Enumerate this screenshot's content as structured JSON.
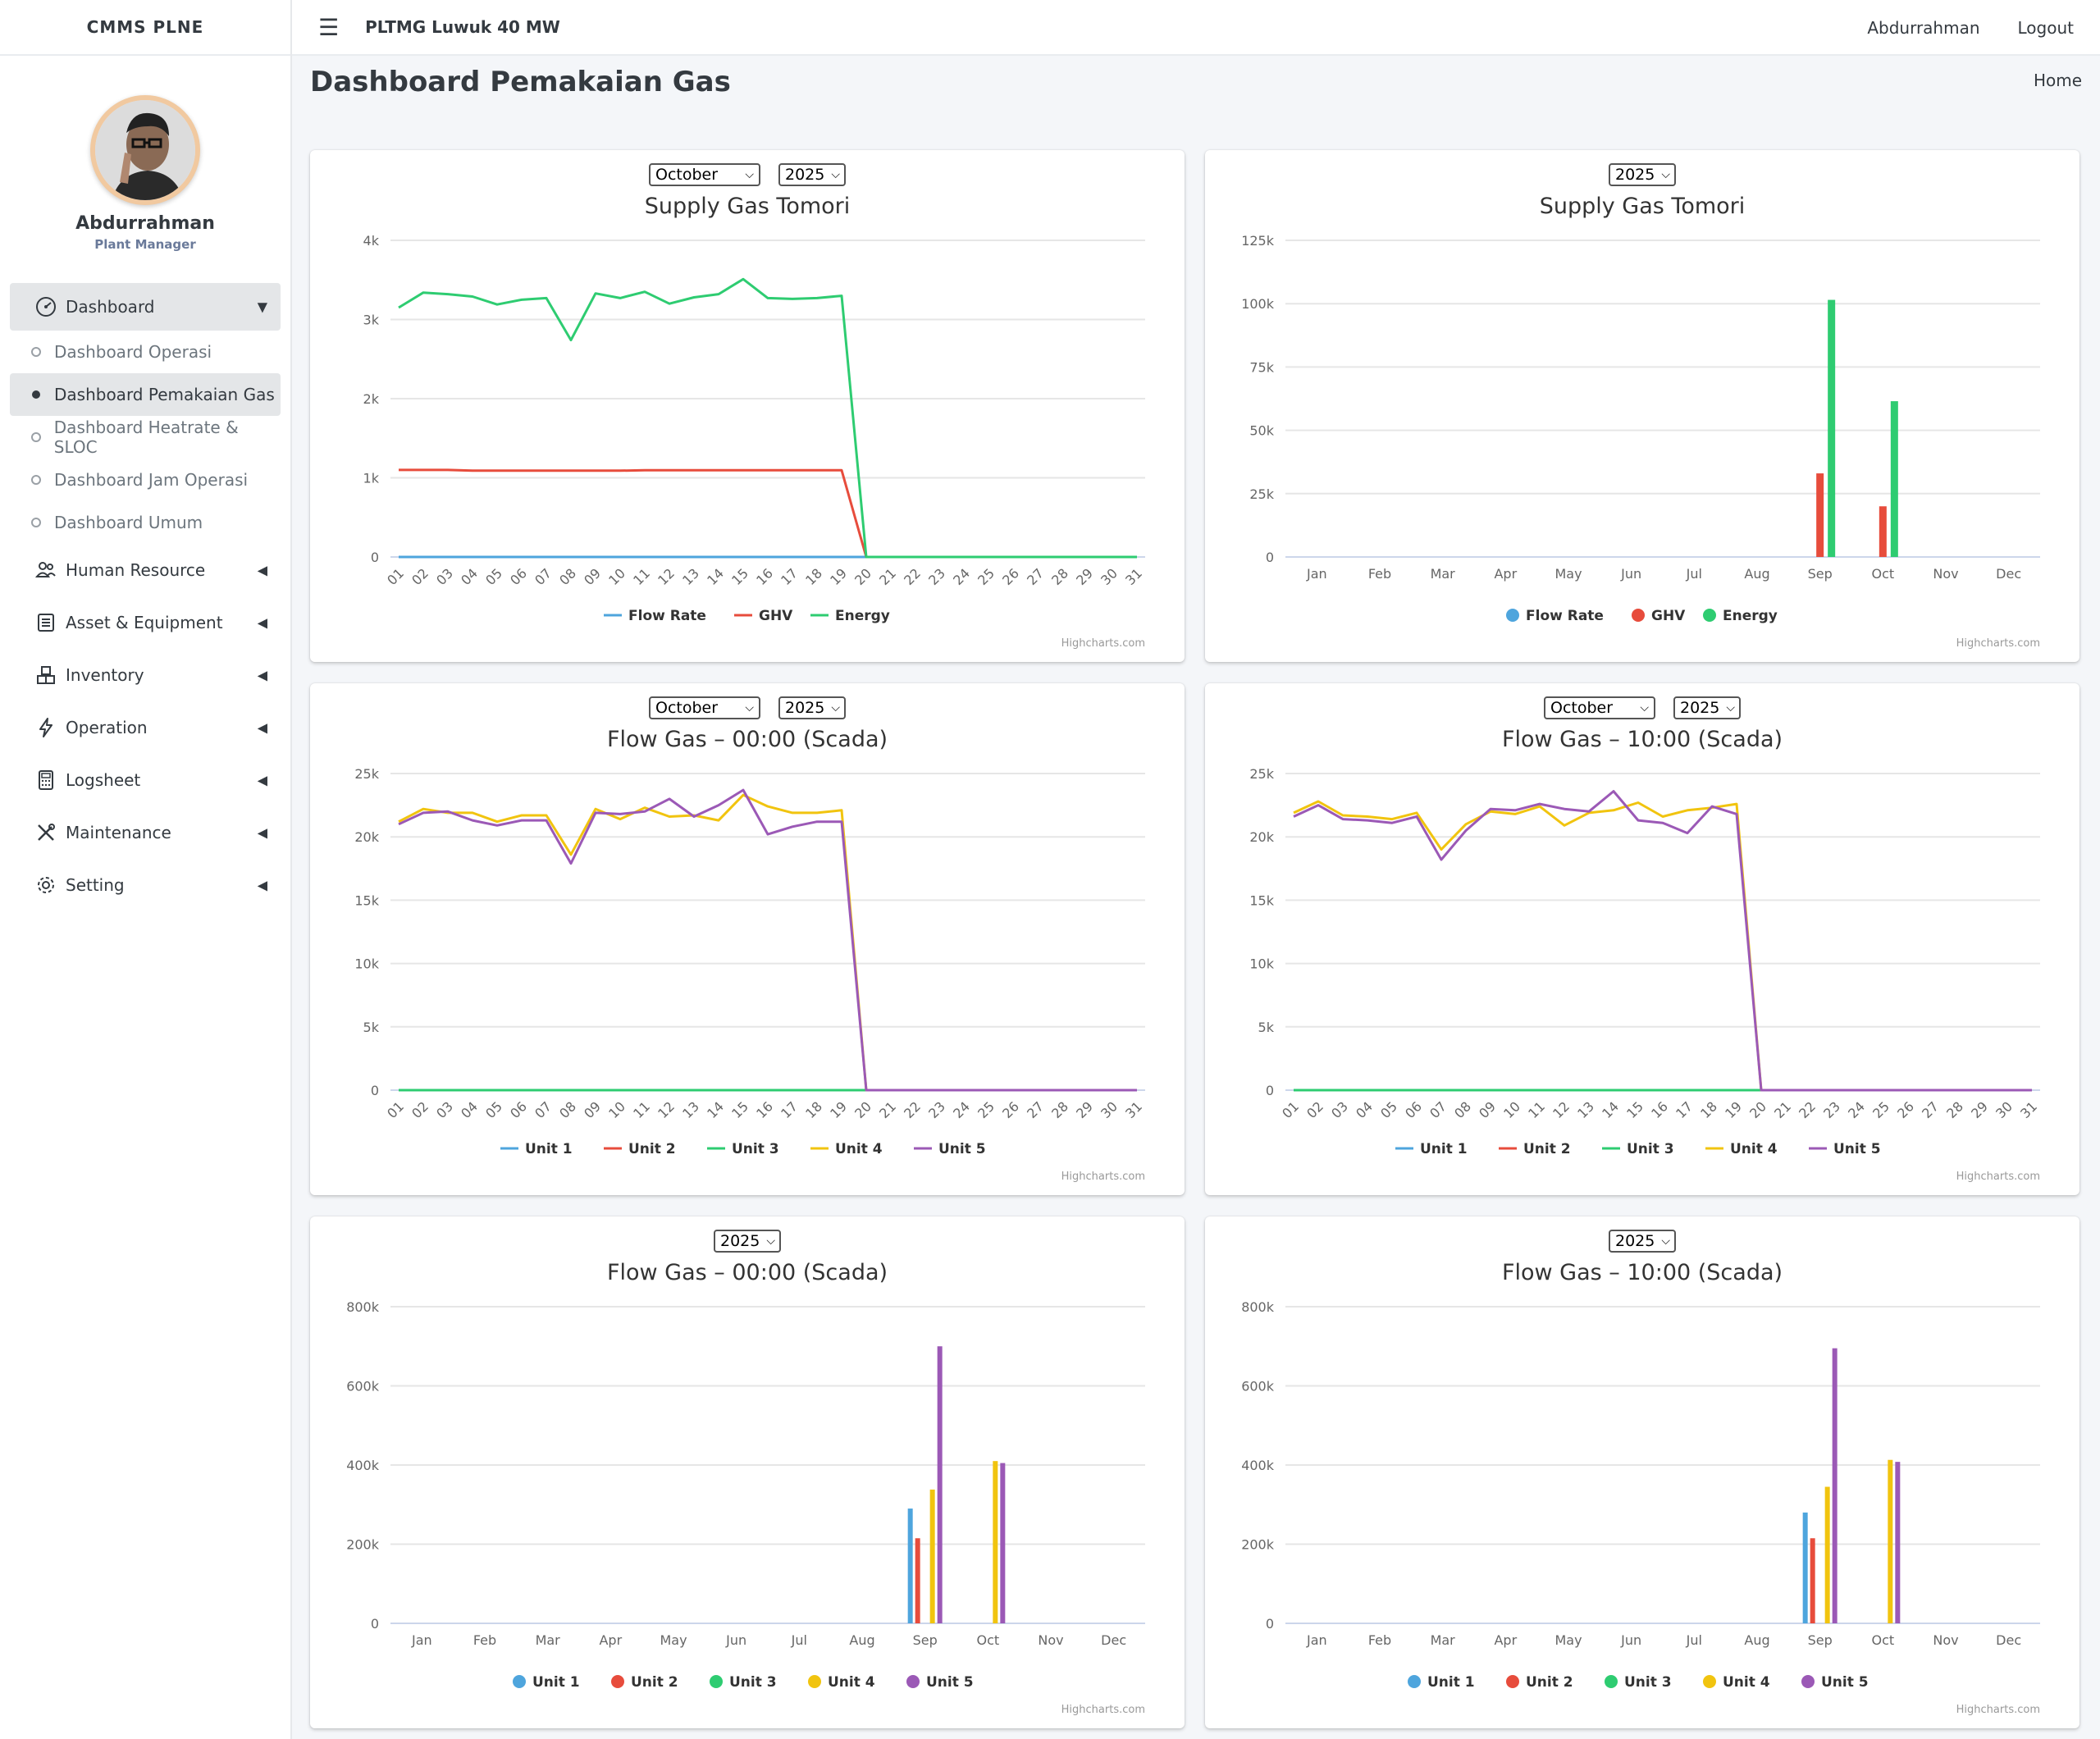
{
  "app": {
    "brand": "CMMS PLNE",
    "site_title": "PLTMG Luwuk 40 MW",
    "user_name": "Abdurrahman",
    "logout_label": "Logout"
  },
  "profile": {
    "name": "Abdurrahman",
    "role": "Plant Manager"
  },
  "sidebar": {
    "dashboard": {
      "label": "Dashboard",
      "icon": "gauge-icon"
    },
    "sub_items": [
      {
        "label": "Dashboard Operasi",
        "active": false
      },
      {
        "label": "Dashboard Pemakaian Gas",
        "active": true
      },
      {
        "label": "Dashboard Heatrate & SLOC",
        "active": false
      },
      {
        "label": "Dashboard Jam Operasi",
        "active": false
      },
      {
        "label": "Dashboard Umum",
        "active": false
      }
    ],
    "items": [
      {
        "label": "Human Resource",
        "icon": "users-icon"
      },
      {
        "label": "Asset & Equipment",
        "icon": "list-icon"
      },
      {
        "label": "Inventory",
        "icon": "boxes-icon"
      },
      {
        "label": "Operation",
        "icon": "bolt-icon"
      },
      {
        "label": "Logsheet",
        "icon": "calculator-icon"
      },
      {
        "label": "Maintenance",
        "icon": "tools-icon"
      },
      {
        "label": "Setting",
        "icon": "gear-icon"
      }
    ]
  },
  "page": {
    "title": "Dashboard Pemakaian Gas",
    "breadcrumb": "Home"
  },
  "credits": "Highcharts.com",
  "colors": {
    "blue": "#4ea5dd",
    "red": "#e74c3c",
    "green": "#2ecc71",
    "yellow": "#f1c40f",
    "purple": "#9b59b6"
  },
  "chart_data": [
    {
      "type": "line",
      "title": "Supply Gas Tomori",
      "selectors": {
        "month": "October",
        "year": "2025"
      },
      "categories": [
        "01",
        "02",
        "03",
        "04",
        "05",
        "06",
        "07",
        "08",
        "09",
        "10",
        "11",
        "12",
        "13",
        "14",
        "15",
        "16",
        "17",
        "18",
        "19",
        "20",
        "21",
        "22",
        "23",
        "24",
        "25",
        "26",
        "27",
        "28",
        "29",
        "30",
        "31"
      ],
      "ylim": [
        0,
        4000
      ],
      "yticks": [
        0,
        1000,
        2000,
        3000,
        4000
      ],
      "ytick_labels": [
        "0",
        "1k",
        "2k",
        "3k",
        "4k"
      ],
      "legend_marker": "line",
      "series": [
        {
          "name": "Flow Rate",
          "color": "#4ea5dd",
          "values": [
            0,
            0,
            0,
            0,
            0,
            0,
            0,
            0,
            0,
            0,
            0,
            0,
            0,
            0,
            0,
            0,
            0,
            0,
            0,
            0,
            0,
            0,
            0,
            0,
            0,
            0,
            0,
            0,
            0,
            0,
            0
          ]
        },
        {
          "name": "GHV",
          "color": "#e74c3c",
          "values": [
            1100,
            1100,
            1100,
            1090,
            1090,
            1090,
            1090,
            1090,
            1090,
            1090,
            1095,
            1095,
            1095,
            1095,
            1095,
            1095,
            1095,
            1095,
            1095,
            0,
            0,
            0,
            0,
            0,
            0,
            0,
            0,
            0,
            0,
            0,
            0
          ]
        },
        {
          "name": "Energy",
          "color": "#2ecc71",
          "values": [
            3150,
            3340,
            3320,
            3290,
            3190,
            3250,
            3270,
            2740,
            3330,
            3270,
            3350,
            3200,
            3280,
            3320,
            3510,
            3270,
            3260,
            3270,
            3300,
            0,
            0,
            0,
            0,
            0,
            0,
            0,
            0,
            0,
            0,
            0,
            0
          ]
        }
      ]
    },
    {
      "type": "bar",
      "title": "Supply Gas Tomori",
      "selectors": {
        "year": "2025"
      },
      "categories": [
        "Jan",
        "Feb",
        "Mar",
        "Apr",
        "May",
        "Jun",
        "Jul",
        "Aug",
        "Sep",
        "Oct",
        "Nov",
        "Dec"
      ],
      "ylim": [
        0,
        125000
      ],
      "yticks": [
        0,
        25000,
        50000,
        75000,
        100000,
        125000
      ],
      "ytick_labels": [
        "0",
        "25k",
        "50k",
        "75k",
        "100k",
        "125k"
      ],
      "legend_marker": "dot",
      "series": [
        {
          "name": "Flow Rate",
          "color": "#4ea5dd",
          "values": [
            0,
            0,
            0,
            0,
            0,
            0,
            0,
            0,
            0,
            0,
            0,
            0
          ]
        },
        {
          "name": "GHV",
          "color": "#e74c3c",
          "values": [
            0,
            0,
            0,
            0,
            0,
            0,
            0,
            0,
            33000,
            20000,
            0,
            0
          ]
        },
        {
          "name": "Energy",
          "color": "#2ecc71",
          "values": [
            0,
            0,
            0,
            0,
            0,
            0,
            0,
            0,
            101500,
            61500,
            0,
            0
          ]
        }
      ]
    },
    {
      "type": "line",
      "title": "Flow Gas – 00:00 (Scada)",
      "selectors": {
        "month": "October",
        "year": "2025"
      },
      "categories": [
        "01",
        "02",
        "03",
        "04",
        "05",
        "06",
        "07",
        "08",
        "09",
        "10",
        "11",
        "12",
        "13",
        "14",
        "15",
        "16",
        "17",
        "18",
        "19",
        "20",
        "21",
        "22",
        "23",
        "24",
        "25",
        "26",
        "27",
        "28",
        "29",
        "30",
        "31"
      ],
      "ylim": [
        0,
        25000
      ],
      "yticks": [
        0,
        5000,
        10000,
        15000,
        20000,
        25000
      ],
      "ytick_labels": [
        "0",
        "5k",
        "10k",
        "15k",
        "20k",
        "25k"
      ],
      "legend_marker": "line",
      "series": [
        {
          "name": "Unit 1",
          "color": "#4ea5dd",
          "values": [
            0,
            0,
            0,
            0,
            0,
            0,
            0,
            0,
            0,
            0,
            0,
            0,
            0,
            0,
            0,
            0,
            0,
            0,
            0,
            0,
            0,
            0,
            0,
            0,
            0,
            0,
            0,
            0,
            0,
            0,
            0
          ]
        },
        {
          "name": "Unit 2",
          "color": "#e74c3c",
          "values": [
            0,
            0,
            0,
            0,
            0,
            0,
            0,
            0,
            0,
            0,
            0,
            0,
            0,
            0,
            0,
            0,
            0,
            0,
            0,
            0,
            0,
            0,
            0,
            0,
            0,
            0,
            0,
            0,
            0,
            0,
            0
          ]
        },
        {
          "name": "Unit 3",
          "color": "#2ecc71",
          "values": [
            0,
            0,
            0,
            0,
            0,
            0,
            0,
            0,
            0,
            0,
            0,
            0,
            0,
            0,
            0,
            0,
            0,
            0,
            0,
            0,
            0,
            0,
            0,
            0,
            0,
            0,
            0,
            0,
            0,
            0,
            0
          ]
        },
        {
          "name": "Unit 4",
          "color": "#f1c40f",
          "values": [
            21200,
            22200,
            21900,
            21900,
            21200,
            21700,
            21700,
            18600,
            22200,
            21400,
            22300,
            21600,
            21700,
            21300,
            23300,
            22400,
            21900,
            21900,
            22100,
            0,
            0,
            0,
            0,
            0,
            0,
            0,
            0,
            0,
            0,
            0,
            0
          ]
        },
        {
          "name": "Unit 5",
          "color": "#9b59b6",
          "values": [
            21000,
            21900,
            22000,
            21300,
            20900,
            21300,
            21300,
            17900,
            21900,
            21800,
            22000,
            23000,
            21600,
            22500,
            23700,
            20200,
            20800,
            21200,
            21200,
            0,
            0,
            0,
            0,
            0,
            0,
            0,
            0,
            0,
            0,
            0,
            0
          ]
        }
      ]
    },
    {
      "type": "line",
      "title": "Flow Gas – 10:00 (Scada)",
      "selectors": {
        "month": "October",
        "year": "2025"
      },
      "categories": [
        "01",
        "02",
        "03",
        "04",
        "05",
        "06",
        "07",
        "08",
        "09",
        "10",
        "11",
        "12",
        "13",
        "14",
        "15",
        "16",
        "17",
        "18",
        "19",
        "20",
        "21",
        "22",
        "23",
        "24",
        "25",
        "26",
        "27",
        "28",
        "29",
        "30",
        "31"
      ],
      "ylim": [
        0,
        25000
      ],
      "yticks": [
        0,
        5000,
        10000,
        15000,
        20000,
        25000
      ],
      "ytick_labels": [
        "0",
        "5k",
        "10k",
        "15k",
        "20k",
        "25k"
      ],
      "legend_marker": "line",
      "series": [
        {
          "name": "Unit 1",
          "color": "#4ea5dd",
          "values": [
            0,
            0,
            0,
            0,
            0,
            0,
            0,
            0,
            0,
            0,
            0,
            0,
            0,
            0,
            0,
            0,
            0,
            0,
            0,
            0,
            0,
            0,
            0,
            0,
            0,
            0,
            0,
            0,
            0,
            0,
            0
          ]
        },
        {
          "name": "Unit 2",
          "color": "#e74c3c",
          "values": [
            0,
            0,
            0,
            0,
            0,
            0,
            0,
            0,
            0,
            0,
            0,
            0,
            0,
            0,
            0,
            0,
            0,
            0,
            0,
            0,
            0,
            0,
            0,
            0,
            0,
            0,
            0,
            0,
            0,
            0,
            0
          ]
        },
        {
          "name": "Unit 3",
          "color": "#2ecc71",
          "values": [
            0,
            0,
            0,
            0,
            0,
            0,
            0,
            0,
            0,
            0,
            0,
            0,
            0,
            0,
            0,
            0,
            0,
            0,
            0,
            0,
            0,
            0,
            0,
            0,
            0,
            0,
            0,
            0,
            0,
            0,
            0
          ]
        },
        {
          "name": "Unit 4",
          "color": "#f1c40f",
          "values": [
            21900,
            22800,
            21700,
            21600,
            21400,
            21900,
            19000,
            21000,
            22000,
            21800,
            22400,
            20900,
            21900,
            22100,
            22700,
            21600,
            22100,
            22300,
            22600,
            0,
            0,
            0,
            0,
            0,
            0,
            0,
            0,
            0,
            0,
            0,
            0
          ]
        },
        {
          "name": "Unit 5",
          "color": "#9b59b6",
          "values": [
            21600,
            22500,
            21400,
            21300,
            21100,
            21600,
            18200,
            20500,
            22200,
            22100,
            22600,
            22200,
            22000,
            23600,
            21300,
            21100,
            20300,
            22400,
            21800,
            0,
            0,
            0,
            0,
            0,
            0,
            0,
            0,
            0,
            0,
            0,
            0
          ]
        }
      ]
    },
    {
      "type": "bar",
      "title": "Flow Gas – 00:00 (Scada)",
      "selectors": {
        "year": "2025"
      },
      "categories": [
        "Jan",
        "Feb",
        "Mar",
        "Apr",
        "May",
        "Jun",
        "Jul",
        "Aug",
        "Sep",
        "Oct",
        "Nov",
        "Dec"
      ],
      "ylim": [
        0,
        800000
      ],
      "yticks": [
        0,
        200000,
        400000,
        600000,
        800000
      ],
      "ytick_labels": [
        "0",
        "200k",
        "400k",
        "600k",
        "800k"
      ],
      "legend_marker": "dot",
      "series": [
        {
          "name": "Unit 1",
          "color": "#4ea5dd",
          "values": [
            0,
            0,
            0,
            0,
            0,
            0,
            0,
            0,
            290000,
            0,
            0,
            0
          ]
        },
        {
          "name": "Unit 2",
          "color": "#e74c3c",
          "values": [
            0,
            0,
            0,
            0,
            0,
            0,
            0,
            0,
            215000,
            0,
            0,
            0
          ]
        },
        {
          "name": "Unit 3",
          "color": "#2ecc71",
          "values": [
            0,
            0,
            0,
            0,
            0,
            0,
            0,
            0,
            0,
            0,
            0,
            0
          ]
        },
        {
          "name": "Unit 4",
          "color": "#f1c40f",
          "values": [
            0,
            0,
            0,
            0,
            0,
            0,
            0,
            0,
            338000,
            410000,
            0,
            0
          ]
        },
        {
          "name": "Unit 5",
          "color": "#9b59b6",
          "values": [
            0,
            0,
            0,
            0,
            0,
            0,
            0,
            0,
            700000,
            405000,
            0,
            0
          ]
        }
      ]
    },
    {
      "type": "bar",
      "title": "Flow Gas – 10:00 (Scada)",
      "selectors": {
        "year": "2025"
      },
      "categories": [
        "Jan",
        "Feb",
        "Mar",
        "Apr",
        "May",
        "Jun",
        "Jul",
        "Aug",
        "Sep",
        "Oct",
        "Nov",
        "Dec"
      ],
      "ylim": [
        0,
        800000
      ],
      "yticks": [
        0,
        200000,
        400000,
        600000,
        800000
      ],
      "ytick_labels": [
        "0",
        "200k",
        "400k",
        "600k",
        "800k"
      ],
      "legend_marker": "dot",
      "series": [
        {
          "name": "Unit 1",
          "color": "#4ea5dd",
          "values": [
            0,
            0,
            0,
            0,
            0,
            0,
            0,
            0,
            280000,
            0,
            0,
            0
          ]
        },
        {
          "name": "Unit 2",
          "color": "#e74c3c",
          "values": [
            0,
            0,
            0,
            0,
            0,
            0,
            0,
            0,
            215000,
            0,
            0,
            0
          ]
        },
        {
          "name": "Unit 3",
          "color": "#2ecc71",
          "values": [
            0,
            0,
            0,
            0,
            0,
            0,
            0,
            0,
            0,
            0,
            0,
            0
          ]
        },
        {
          "name": "Unit 4",
          "color": "#f1c40f",
          "values": [
            0,
            0,
            0,
            0,
            0,
            0,
            0,
            0,
            345000,
            413000,
            0,
            0
          ]
        },
        {
          "name": "Unit 5",
          "color": "#9b59b6",
          "values": [
            0,
            0,
            0,
            0,
            0,
            0,
            0,
            0,
            695000,
            408000,
            0,
            0
          ]
        }
      ]
    }
  ]
}
